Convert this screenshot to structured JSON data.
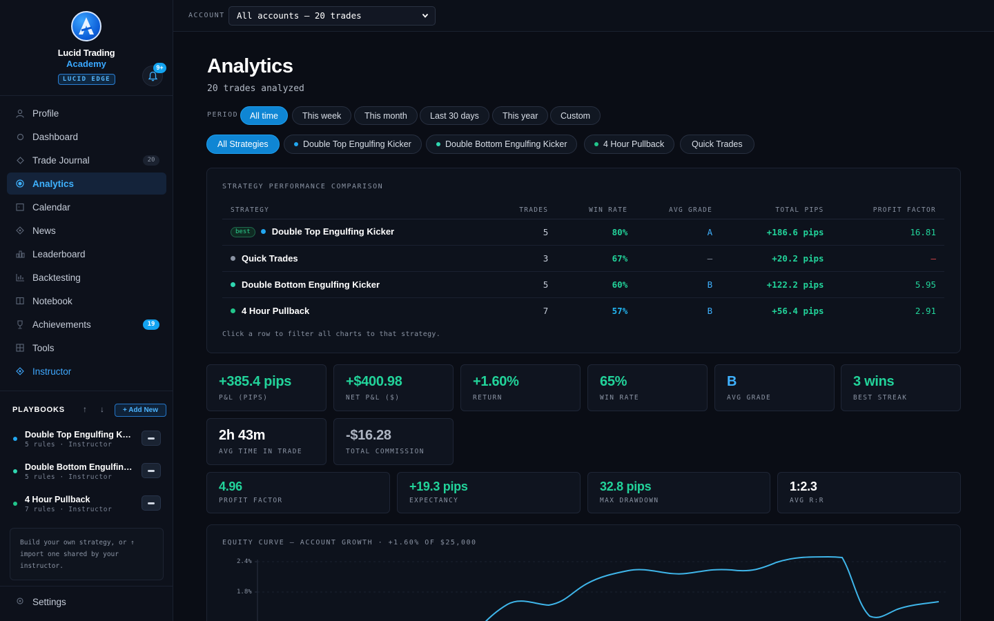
{
  "brand": {
    "name": "Lucid Trading",
    "sub": "Academy",
    "badge": "LUCID EDGE",
    "notification_count": "9+"
  },
  "nav": [
    {
      "label": "Profile",
      "icon": "person-icon"
    },
    {
      "label": "Dashboard",
      "icon": "circle-icon"
    },
    {
      "label": "Trade Journal",
      "icon": "diamond-icon",
      "count": "20"
    },
    {
      "label": "Analytics",
      "icon": "target-icon",
      "active": true
    },
    {
      "label": "Calendar",
      "icon": "calendar-icon"
    },
    {
      "label": "News",
      "icon": "news-icon"
    },
    {
      "label": "Leaderboard",
      "icon": "bar-chart-icon"
    },
    {
      "label": "Backtesting",
      "icon": "backtest-icon"
    },
    {
      "label": "Notebook",
      "icon": "notebook-icon"
    },
    {
      "label": "Achievements",
      "icon": "trophy-icon",
      "count": "19"
    },
    {
      "label": "Tools",
      "icon": "grid-icon"
    },
    {
      "label": "Instructor",
      "icon": "instructor-icon"
    }
  ],
  "playbooks": {
    "title": "PLAYBOOKS",
    "up_arrow": "↑",
    "down_arrow": "↓",
    "add_label": "+ Add New",
    "items": [
      {
        "name": "Double Top Engulfing Kicker",
        "meta": "5 rules · Instructor"
      },
      {
        "name": "Double Bottom Engulfing Kicker",
        "meta": "5 rules · Instructor"
      },
      {
        "name": "4 Hour Pullback",
        "meta": "7 rules · Instructor"
      }
    ],
    "note": "Build your own strategy, or ↑ import one shared by your instructor."
  },
  "settings_label": "Settings",
  "topbar": {
    "account_label": "ACCOUNT",
    "account_value": "All accounts — 20 trades"
  },
  "header": {
    "title": "Analytics",
    "subtitle": "20 trades analyzed"
  },
  "period": {
    "label": "PERIOD",
    "options": [
      "All time",
      "This week",
      "This month",
      "Last 30 days",
      "This year",
      "Custom"
    ],
    "selected": "All time"
  },
  "strategy_filters": [
    {
      "label": "All Strategies",
      "active": true
    },
    {
      "label": "Double Top Engulfing Kicker",
      "color": "#22a7f0"
    },
    {
      "label": "Double Bottom Engulfing Kicker",
      "color": "#2fd6b0"
    },
    {
      "label": "4 Hour Pullback",
      "color": "#22c58b"
    },
    {
      "label": "Quick Trades"
    }
  ],
  "comparison": {
    "title": "STRATEGY PERFORMANCE COMPARISON",
    "columns": [
      "STRATEGY",
      "TRADES",
      "WIN RATE",
      "AVG GRADE",
      "TOTAL PIPS",
      "PROFIT FACTOR"
    ],
    "best_label": "best",
    "rows": [
      {
        "name": "Double Top Engulfing Kicker",
        "color": "#22a7f0",
        "trades": "5",
        "win_rate": "80%",
        "grade": "A",
        "pips": "+186.6 pips",
        "pf": "16.81"
      },
      {
        "name": "Quick Trades",
        "color": "#8a93a3",
        "trades": "3",
        "win_rate": "67%",
        "grade": "—",
        "pips": "+20.2 pips",
        "pf": "—"
      },
      {
        "name": "Double Bottom Engulfing Kicker",
        "color": "#2fd6b0",
        "trades": "5",
        "win_rate": "60%",
        "grade": "B",
        "pips": "+122.2 pips",
        "pf": "5.95"
      },
      {
        "name": "4 Hour Pullback",
        "color": "#22c58b",
        "trades": "7",
        "win_rate": "57%",
        "grade": "B",
        "pips": "+56.4 pips",
        "pf": "2.91"
      }
    ],
    "hint": "Click a row to filter all charts to that strategy."
  },
  "stats": [
    {
      "value": "+385.4 pips",
      "label": "P&L (PIPS)"
    },
    {
      "value": "+$400.98",
      "label": "NET P&L ($)"
    },
    {
      "value": "+1.60%",
      "label": "RETURN"
    },
    {
      "value": "65%",
      "label": "WIN RATE"
    },
    {
      "value": "B",
      "label": "AVG GRADE"
    },
    {
      "value": "3 wins",
      "label": "BEST STREAK"
    },
    {
      "value": "2h 43m",
      "label": "AVG TIME IN TRADE"
    },
    {
      "value": "-$16.28",
      "label": "TOTAL COMMISSION"
    }
  ],
  "stats2": [
    {
      "value": "4.96",
      "label": "PROFIT FACTOR"
    },
    {
      "value": "+19.3 pips",
      "label": "EXPECTANCY"
    },
    {
      "value": "32.8 pips",
      "label": "MAX DRAWDOWN"
    },
    {
      "value": "1:2.3",
      "label": "AVG R:R"
    }
  ],
  "equity": {
    "title": "EQUITY CURVE — ACCOUNT GROWTH · +1.60% OF $25,000",
    "y_ticks": [
      "2.4%",
      "1.8%"
    ]
  },
  "colors": {
    "accent": "#13a3f0",
    "green": "#22d39a",
    "red": "#e5484d",
    "background": "#0a0d15"
  }
}
